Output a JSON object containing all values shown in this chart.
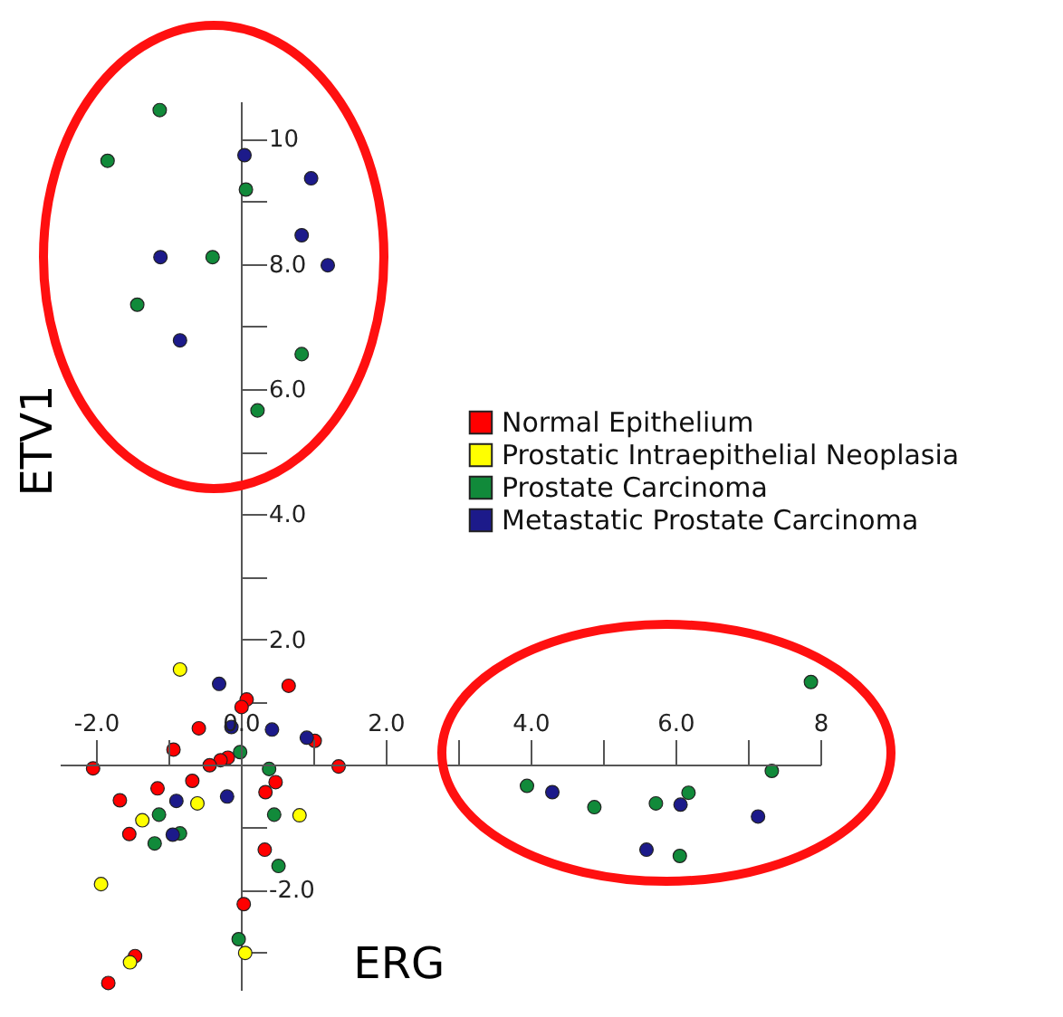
{
  "chart_data": {
    "type": "scatter",
    "xlabel": "ERG",
    "ylabel": "ETV1",
    "marker": "circle",
    "legend": "right",
    "xlim": [
      -2.5,
      8
    ],
    "ylim": [
      -3.6,
      10.6
    ],
    "xticks": [
      {
        "value": -2,
        "label": "-2.0"
      },
      {
        "value": -1,
        "label": null
      },
      {
        "value": 0,
        "label": "0.0"
      },
      {
        "value": 1,
        "label": null
      },
      {
        "value": 2,
        "label": "2.0"
      },
      {
        "value": 3,
        "label": null
      },
      {
        "value": 4,
        "label": "4.0"
      },
      {
        "value": 5,
        "label": null
      },
      {
        "value": 6,
        "label": "6.0"
      },
      {
        "value": 7,
        "label": null
      },
      {
        "value": 8,
        "label": "8"
      }
    ],
    "yticks": [
      {
        "value": -3,
        "label": null
      },
      {
        "value": -2,
        "label": "-2.0"
      },
      {
        "value": -1,
        "label": null
      },
      {
        "value": 1,
        "label": null
      },
      {
        "value": 2,
        "label": "2.0"
      },
      {
        "value": 3,
        "label": null
      },
      {
        "value": 4,
        "label": "4.0"
      },
      {
        "value": 5,
        "label": null
      },
      {
        "value": 6,
        "label": "6.0"
      },
      {
        "value": 7,
        "label": null
      },
      {
        "value": 8,
        "label": "8.0"
      },
      {
        "value": 9,
        "label": null
      },
      {
        "value": 10,
        "label": "10"
      }
    ],
    "series": [
      {
        "name": "Normal Epithelium",
        "color": "#ff0000",
        "x": [
          0.66,
          0.08,
          0.01,
          -0.58,
          1.02,
          -0.93,
          -0.18,
          -0.28,
          -0.43,
          -2.04,
          1.35,
          0.48,
          -0.67,
          -1.15,
          0.34,
          -1.67,
          -1.54,
          0.33,
          0.04,
          -1.46,
          -1.83
        ],
        "values": [
          1.26,
          1.04,
          0.92,
          0.58,
          0.38,
          0.24,
          0.11,
          0.07,
          -0.01,
          -0.06,
          -0.03,
          -0.28,
          -0.26,
          -0.38,
          -0.44,
          -0.57,
          -1.11,
          -1.36,
          -2.23,
          -3.06,
          -3.49
        ]
      },
      {
        "name": "Prostatic Intraepithelial Neoplasia",
        "color": "#ffff00",
        "x": [
          -0.84,
          -0.6,
          0.81,
          -1.36,
          -1.93,
          0.06,
          -1.53
        ],
        "values": [
          1.52,
          -0.62,
          -0.81,
          -0.89,
          -1.91,
          -3.01,
          -3.16
        ]
      },
      {
        "name": "Prostate Carcinoma",
        "color": "#118a3a",
        "x": [
          -1.12,
          -1.84,
          0.07,
          -0.39,
          -1.43,
          0.84,
          0.23,
          7.87,
          7.33,
          3.95,
          4.88,
          5.73,
          6.18,
          6.06,
          -0.01,
          0.39,
          -1.13,
          0.46,
          -0.84,
          -1.19,
          0.52,
          -0.03
        ],
        "values": [
          10.46,
          9.65,
          9.19,
          8.11,
          7.35,
          6.56,
          5.66,
          1.32,
          -0.1,
          -0.34,
          -0.68,
          -0.62,
          -0.45,
          -1.46,
          0.2,
          -0.07,
          -0.8,
          -0.8,
          -1.1,
          -1.26,
          -1.62,
          -2.79
        ]
      },
      {
        "name": "Metastatic Prostate Carcinoma",
        "color": "#1c1a8a",
        "x": [
          0.05,
          0.97,
          0.84,
          -1.11,
          1.2,
          -0.84,
          4.3,
          6.07,
          7.14,
          5.6,
          -0.3,
          -0.13,
          0.43,
          0.91,
          -0.89,
          -0.19,
          -0.94
        ],
        "values": [
          9.74,
          9.37,
          8.46,
          8.11,
          7.98,
          6.78,
          -0.44,
          -0.64,
          -0.83,
          -1.36,
          1.29,
          0.6,
          0.56,
          0.43,
          -0.58,
          -0.51,
          -1.12
        ]
      }
    ]
  }
}
